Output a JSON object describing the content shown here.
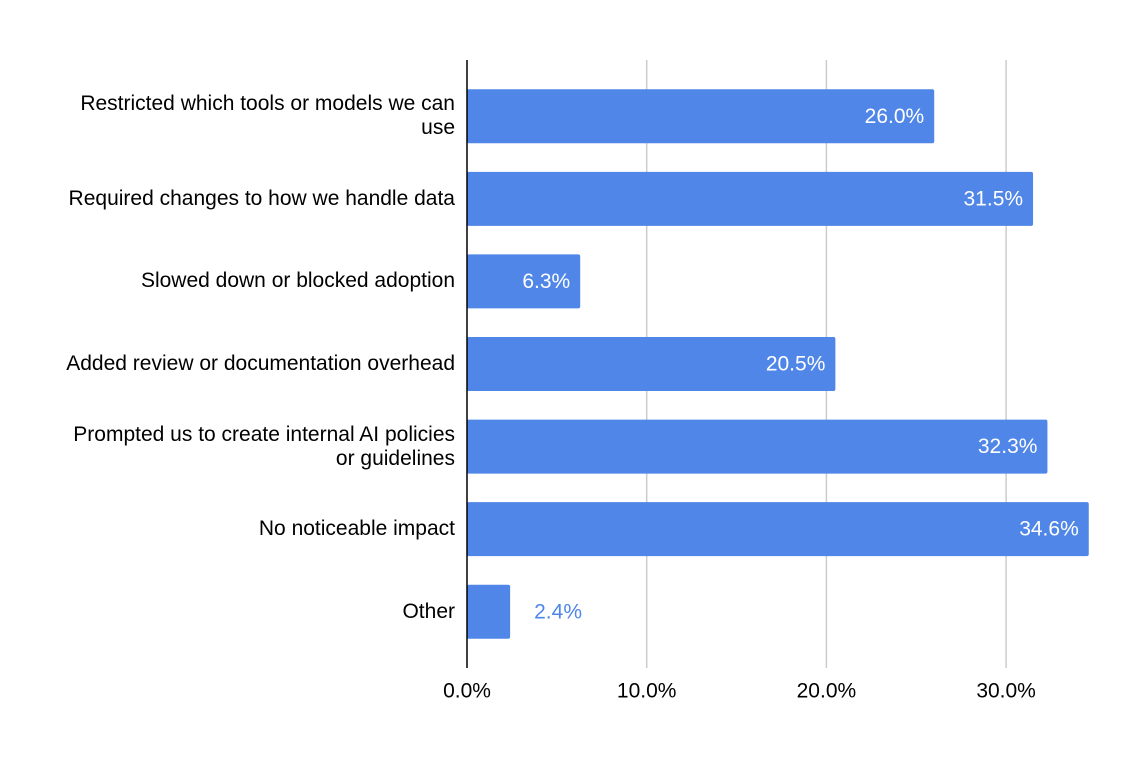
{
  "chart_data": {
    "type": "bar",
    "orientation": "horizontal",
    "categories": [
      "Restricted which tools or models we can use",
      "Required changes to how we handle data",
      "Slowed down or blocked adoption",
      "Added review or documentation overhead",
      "Prompted us to create internal AI policies or guidelines",
      "No noticeable impact",
      "Other"
    ],
    "values": [
      26.0,
      31.5,
      6.3,
      20.5,
      32.3,
      34.6,
      2.4
    ],
    "value_labels": [
      "26.0%",
      "31.5%",
      "6.3%",
      "20.5%",
      "32.3%",
      "34.6%",
      "2.4%"
    ],
    "color": "#4f86e8",
    "xlim": [
      0,
      35
    ],
    "xticks": [
      {
        "value": 0,
        "label": "0.0%"
      },
      {
        "value": 10,
        "label": "10.0%"
      },
      {
        "value": 20,
        "label": "20.0%"
      },
      {
        "value": 30,
        "label": "30.0%"
      }
    ],
    "grid": true
  }
}
